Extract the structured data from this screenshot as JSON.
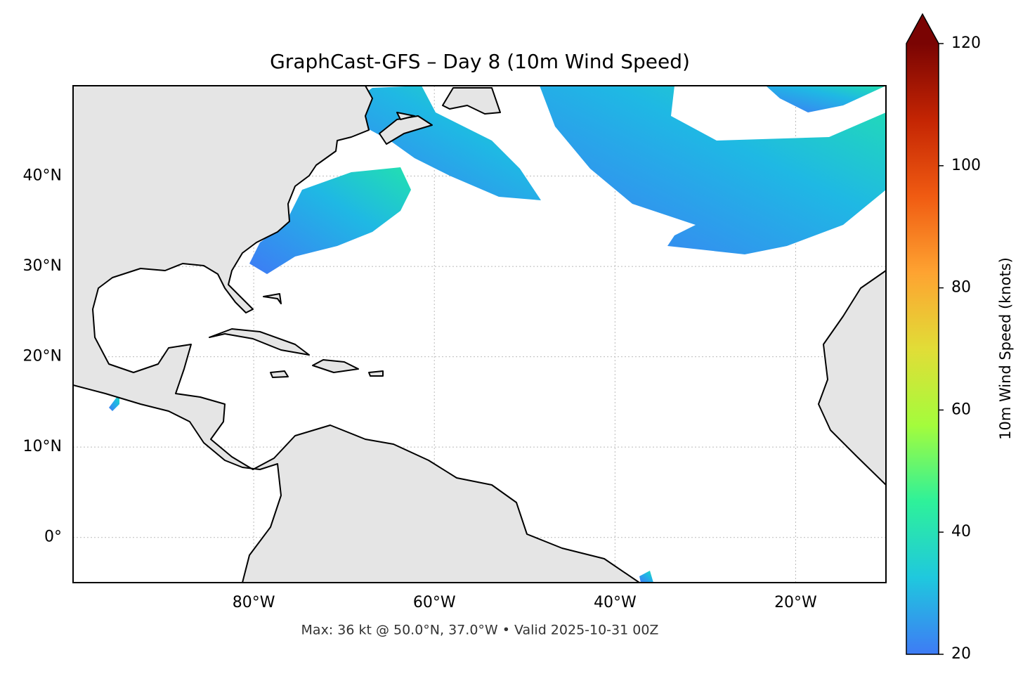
{
  "chart_data": {
    "type": "map",
    "title": "GraphCast-GFS – Day 8 (10m Wind Speed)",
    "footer": "Max: 36 kt @ 50.0°N, 37.0°W • Valid 2025-10-31 00Z",
    "xlim": [
      -100,
      -10
    ],
    "ylim": [
      -5,
      50
    ],
    "xticks": [
      {
        "value": -80,
        "label": "80°W"
      },
      {
        "value": -60,
        "label": "60°W"
      },
      {
        "value": -40,
        "label": "40°W"
      },
      {
        "value": -20,
        "label": "20°W"
      }
    ],
    "yticks": [
      {
        "value": 0,
        "label": "0°"
      },
      {
        "value": 10,
        "label": "10°N"
      },
      {
        "value": 20,
        "label": "20°N"
      },
      {
        "value": 30,
        "label": "30°N"
      },
      {
        "value": 40,
        "label": "40°N"
      }
    ],
    "grid": true,
    "colorbar": {
      "label": "10m Wind Speed (knots)",
      "lim": [
        20,
        120
      ],
      "ticks": [
        20,
        40,
        60,
        80,
        100,
        120
      ],
      "colors": [
        "#3e7bf5",
        "#1fc8de",
        "#2ef19a",
        "#a4fc3c",
        "#e1dd37",
        "#fea331",
        "#f05b12",
        "#c42503",
        "#7a0403"
      ]
    }
  }
}
